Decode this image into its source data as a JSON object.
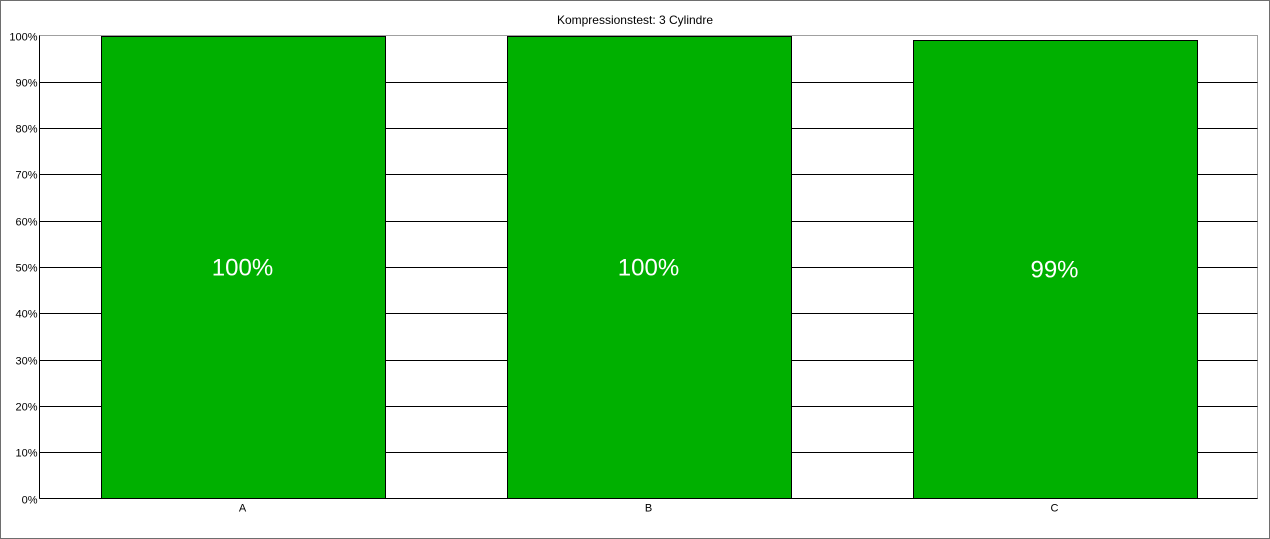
{
  "chart_data": {
    "type": "bar",
    "title": "Kompressionstest: 3 Cylindre",
    "categories": [
      "A",
      "B",
      "C"
    ],
    "values": [
      100,
      100,
      99
    ],
    "data_labels": [
      "100%",
      "100%",
      "99%"
    ],
    "ylim": [
      0,
      100
    ],
    "yticks": [
      "0%",
      "10%",
      "20%",
      "30%",
      "40%",
      "50%",
      "60%",
      "70%",
      "80%",
      "90%",
      "100%"
    ],
    "grid": true,
    "bar_color": "#00b000",
    "label_color": "#ffffff"
  }
}
